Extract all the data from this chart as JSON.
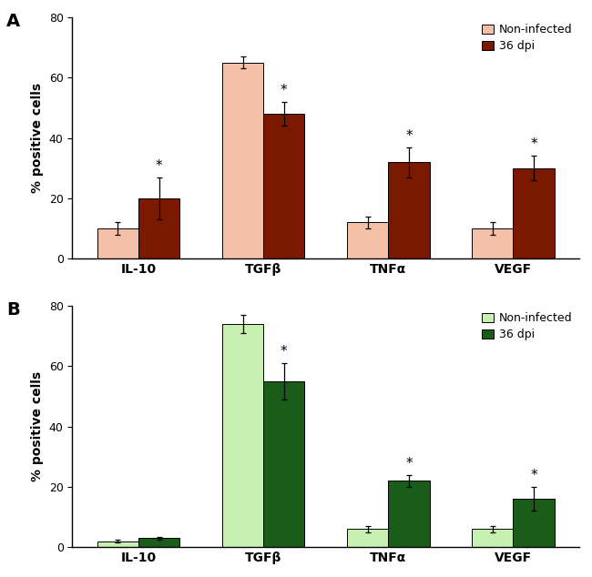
{
  "panel_A": {
    "categories": [
      "IL-10",
      "TGFβ",
      "TNFα",
      "VEGF"
    ],
    "non_infected_values": [
      10,
      65,
      12,
      10
    ],
    "non_infected_errors": [
      2,
      2,
      2,
      2
    ],
    "infected_values": [
      20,
      48,
      32,
      30
    ],
    "infected_errors": [
      7,
      4,
      5,
      4
    ],
    "non_infected_color": "#F5C0A8",
    "infected_color": "#7B1800",
    "star_on_infected": [
      true,
      true,
      true,
      true
    ],
    "label": "A"
  },
  "panel_B": {
    "categories": [
      "IL-10",
      "TGFβ",
      "TNFα",
      "VEGF"
    ],
    "non_infected_values": [
      2,
      74,
      6,
      6
    ],
    "non_infected_errors": [
      0.5,
      3,
      1,
      1
    ],
    "infected_values": [
      3,
      55,
      22,
      16
    ],
    "infected_errors": [
      0.5,
      6,
      2,
      4
    ],
    "non_infected_color": "#C8F0B0",
    "infected_color": "#1A5C1A",
    "star_on_infected": [
      false,
      true,
      true,
      true
    ],
    "label": "B"
  },
  "ylabel": "% positive cells",
  "ylim": [
    0,
    80
  ],
  "yticks": [
    0,
    20,
    40,
    60,
    80
  ],
  "legend_non_infected": "Non-infected",
  "legend_infected": "36 dpi",
  "bar_width": 0.28,
  "fontsize_label": 10,
  "fontsize_tick": 9,
  "fontsize_panel": 14,
  "fontsize_legend": 9,
  "fontsize_xticklabel": 10
}
